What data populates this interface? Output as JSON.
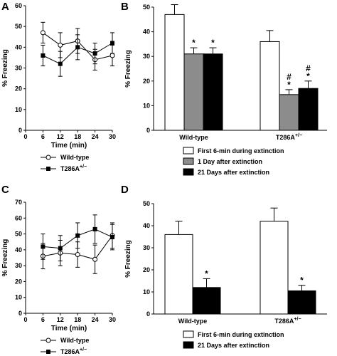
{
  "chart_data": [
    {
      "panel": "A",
      "type": "line",
      "xlabel": "Time (min)",
      "ylabel": "% Freezing",
      "xlim": [
        0,
        30
      ],
      "ylim": [
        0,
        60
      ],
      "xticks": [
        "0",
        "6",
        "12",
        "18",
        "24",
        "30"
      ],
      "yticks": [
        "0",
        "10",
        "20",
        "30",
        "40",
        "50",
        "60"
      ],
      "x": [
        6,
        12,
        18,
        24,
        30
      ],
      "series": [
        {
          "name": "Wild-type",
          "marker": "open-circle",
          "values": [
            47,
            41,
            43,
            34,
            36
          ],
          "errors": [
            5,
            6,
            6,
            5,
            5
          ]
        },
        {
          "name": "T286A",
          "name_sup": "+/−",
          "marker": "filled-square",
          "values": [
            36,
            32,
            40,
            37,
            42
          ],
          "errors": [
            5,
            6,
            6,
            5,
            5
          ]
        }
      ],
      "legend_position": "bottom"
    },
    {
      "panel": "B",
      "type": "bar",
      "ylabel": "% Freezing",
      "ylim": [
        0,
        50
      ],
      "yticks": [
        "0",
        "10",
        "20",
        "30",
        "40",
        "50"
      ],
      "categories": [
        "Wild-type",
        "T286A"
      ],
      "category_sups": [
        "",
        "+/−"
      ],
      "series": [
        {
          "name": "First 6-min during extinction",
          "color": "#ffffff",
          "values": [
            47,
            36
          ],
          "errors": [
            4,
            4.5
          ],
          "marks": [
            "",
            ""
          ]
        },
        {
          "name": "1 Day after extinction",
          "color": "#8c8c8c",
          "values": [
            31,
            14.5
          ],
          "errors": [
            2.5,
            2
          ],
          "marks": [
            "*",
            "#\n*"
          ]
        },
        {
          "name": "21 Days after extinction",
          "color": "#000000",
          "values": [
            31,
            17
          ],
          "errors": [
            2.5,
            3
          ],
          "marks": [
            "*",
            "#\n*"
          ]
        }
      ],
      "legend_position": "bottom"
    },
    {
      "panel": "C",
      "type": "line",
      "xlabel": "Time (min)",
      "ylabel": "% Freezing",
      "xlim": [
        0,
        30
      ],
      "ylim": [
        0,
        70
      ],
      "xticks": [
        "0",
        "6",
        "12",
        "18",
        "24",
        "30"
      ],
      "yticks": [
        "0",
        "10",
        "20",
        "30",
        "40",
        "50",
        "60",
        "70"
      ],
      "x": [
        6,
        12,
        18,
        24,
        30
      ],
      "series": [
        {
          "name": "Wild-type",
          "marker": "open-circle",
          "values": [
            36,
            38,
            37,
            34,
            49
          ],
          "errors": [
            8,
            8,
            8,
            9,
            8
          ]
        },
        {
          "name": "T286A",
          "name_sup": "+/−",
          "marker": "filled-square",
          "values": [
            42,
            41,
            49,
            53,
            48
          ],
          "errors": [
            8,
            8,
            8,
            9,
            8
          ]
        }
      ],
      "legend_position": "bottom"
    },
    {
      "panel": "D",
      "type": "bar",
      "ylabel": "% Freezing",
      "ylim": [
        0,
        50
      ],
      "yticks": [
        "0",
        "10",
        "20",
        "30",
        "40",
        "50"
      ],
      "categories": [
        "Wild-type",
        "T286A"
      ],
      "category_sups": [
        "",
        "+/−"
      ],
      "series": [
        {
          "name": "First 6-min during extinction",
          "color": "#ffffff",
          "values": [
            36,
            42
          ],
          "errors": [
            6,
            6
          ],
          "marks": [
            "",
            ""
          ]
        },
        {
          "name": "21 Days after extinction",
          "color": "#000000",
          "values": [
            12,
            10.5
          ],
          "errors": [
            4,
            2.5
          ],
          "marks": [
            "*",
            "*"
          ]
        }
      ],
      "legend_position": "bottom"
    }
  ]
}
